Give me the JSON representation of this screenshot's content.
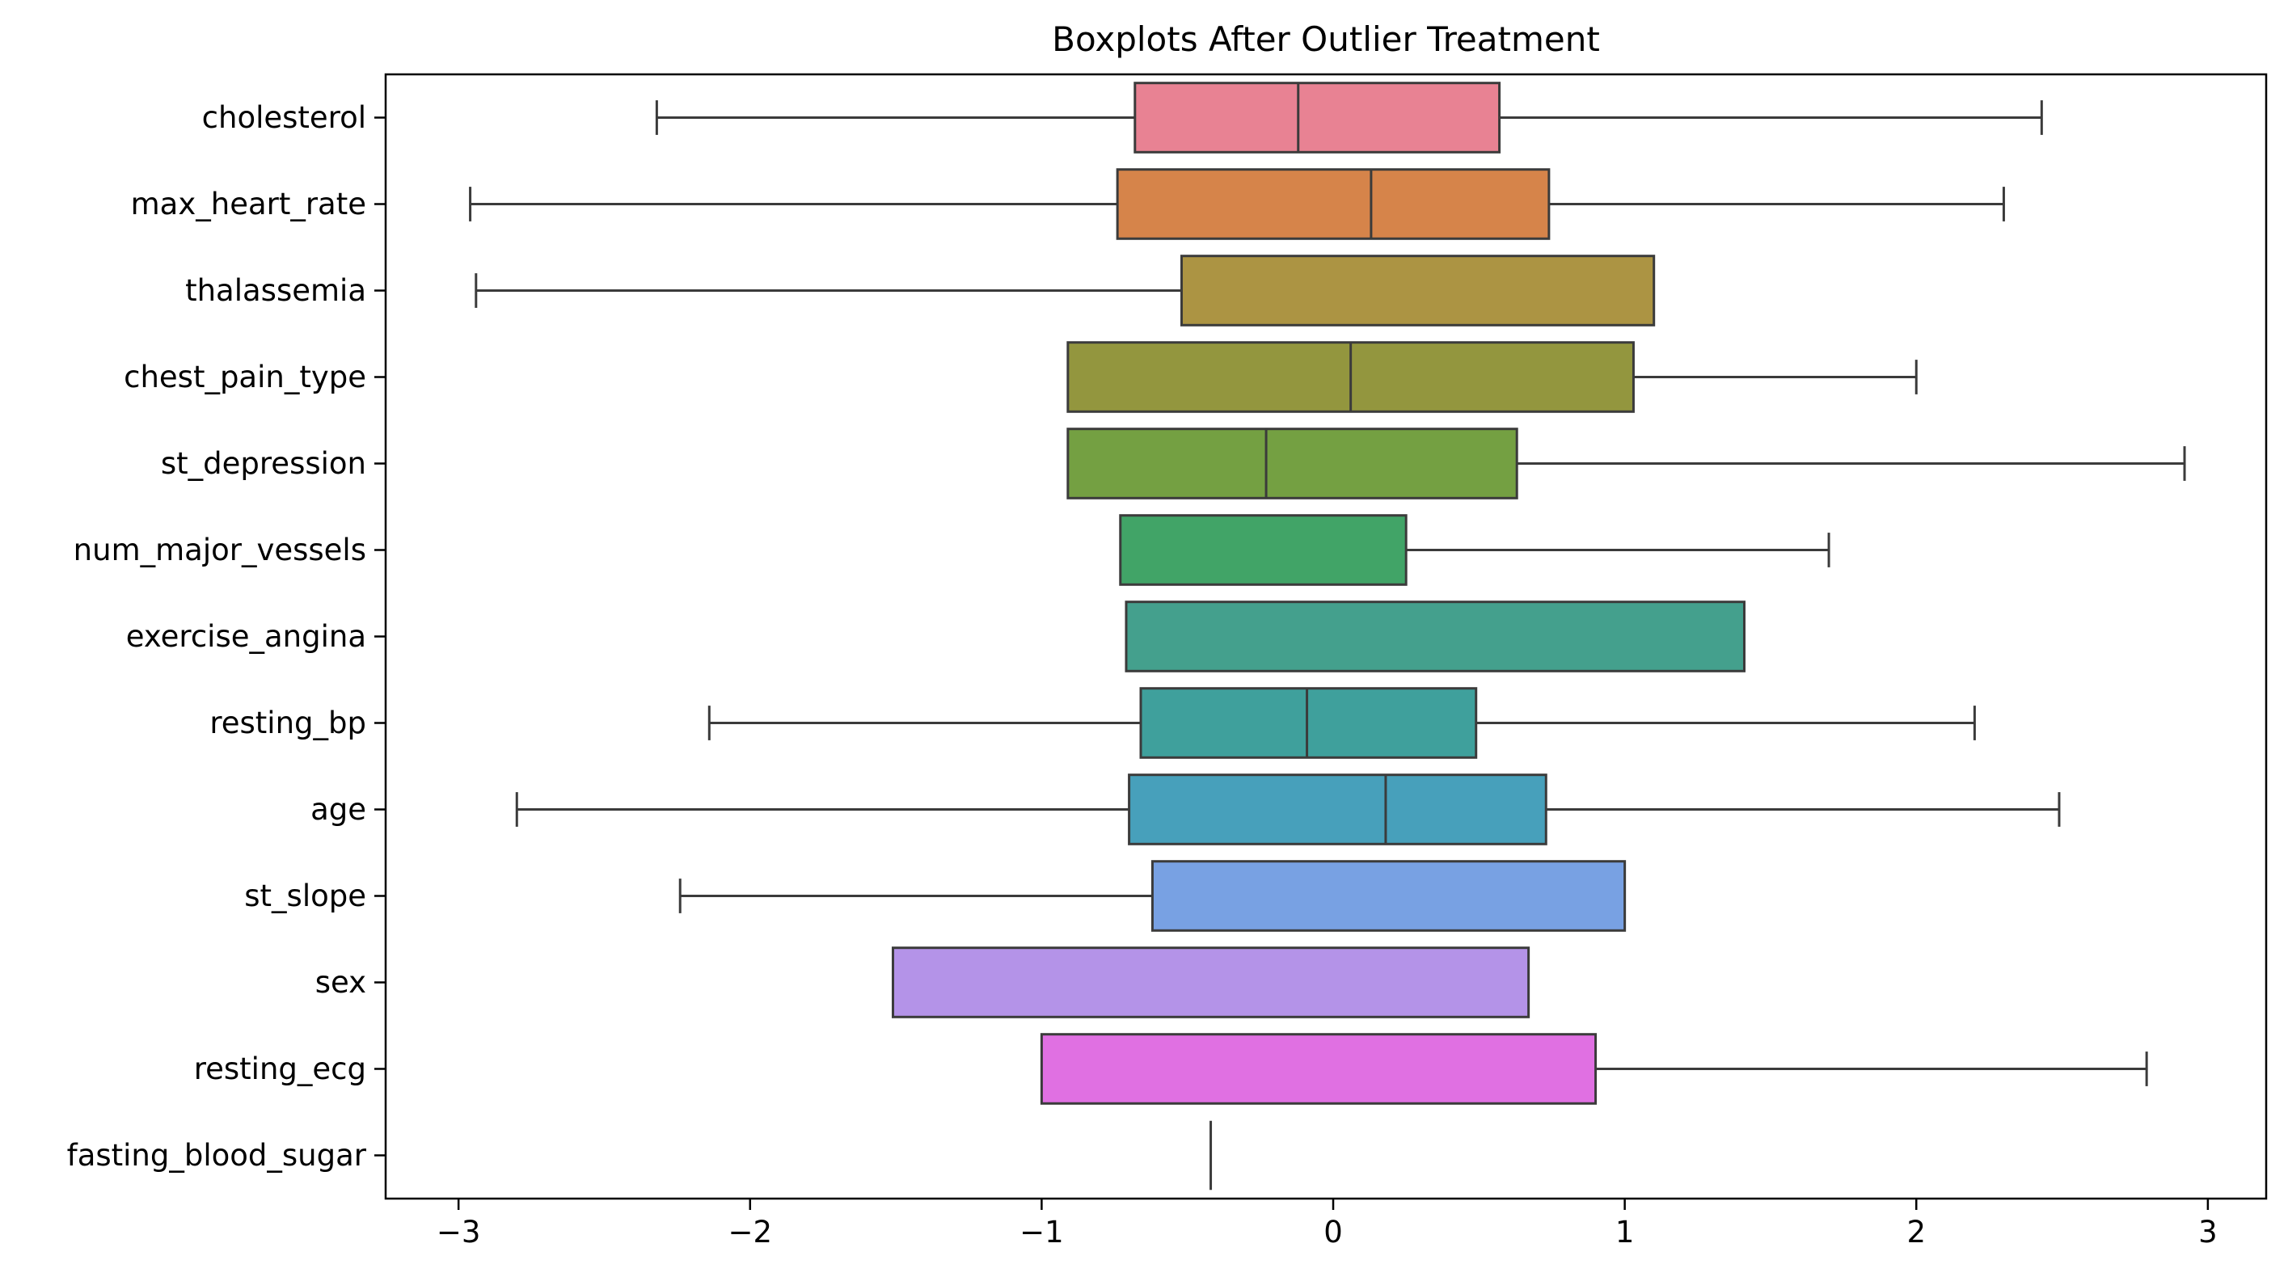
{
  "chart_data": {
    "type": "boxplot",
    "orientation": "horizontal",
    "title": "Boxplots After Outlier Treatment",
    "xlabel": "",
    "ylabel": "",
    "xlim": [
      -3.25,
      3.2
    ],
    "xticks": [
      -3,
      -2,
      -1,
      0,
      1,
      2,
      3
    ],
    "xtick_labels": [
      "−3",
      "−2",
      "−1",
      "0",
      "1",
      "2",
      "3"
    ],
    "grid": false,
    "legend": "none",
    "series": [
      {
        "name": "cholesterol",
        "color": "#e88293",
        "whisker_low": -2.32,
        "q1": -0.68,
        "median": -0.12,
        "q3": 0.57,
        "whisker_high": 2.43
      },
      {
        "name": "max_heart_rate",
        "color": "#d6844a",
        "whisker_low": -2.96,
        "q1": -0.74,
        "median": 0.13,
        "q3": 0.74,
        "whisker_high": 2.3
      },
      {
        "name": "thalassemia",
        "color": "#ac9443",
        "whisker_low": -2.94,
        "q1": -0.52,
        "median": null,
        "q3": 1.1,
        "whisker_high": 1.1
      },
      {
        "name": "chest_pain_type",
        "color": "#93963e",
        "whisker_low": -0.91,
        "q1": -0.91,
        "median": 0.06,
        "q3": 1.03,
        "whisker_high": 2.0
      },
      {
        "name": "st_depression",
        "color": "#74a042",
        "whisker_low": -0.91,
        "q1": -0.91,
        "median": -0.23,
        "q3": 0.63,
        "whisker_high": 2.92
      },
      {
        "name": "num_major_vessels",
        "color": "#41a467",
        "whisker_low": -0.73,
        "q1": -0.73,
        "median": null,
        "q3": 0.25,
        "whisker_high": 1.7
      },
      {
        "name": "exercise_angina",
        "color": "#44a08d",
        "whisker_low": -0.71,
        "q1": -0.71,
        "median": null,
        "q3": 1.41,
        "whisker_high": 1.41
      },
      {
        "name": "resting_bp",
        "color": "#3fa09c",
        "whisker_low": -2.14,
        "q1": -0.66,
        "median": -0.09,
        "q3": 0.49,
        "whisker_high": 2.2
      },
      {
        "name": "age",
        "color": "#47a0bb",
        "whisker_low": -2.8,
        "q1": -0.7,
        "median": 0.18,
        "q3": 0.73,
        "whisker_high": 2.49
      },
      {
        "name": "st_slope",
        "color": "#78a1e3",
        "whisker_low": -2.24,
        "q1": -0.62,
        "median": null,
        "q3": 1.0,
        "whisker_high": 1.0
      },
      {
        "name": "sex",
        "color": "#b493e8",
        "whisker_low": -1.51,
        "q1": -1.51,
        "median": null,
        "q3": 0.67,
        "whisker_high": 0.67
      },
      {
        "name": "resting_ecg",
        "color": "#e070e2",
        "whisker_low": -1.0,
        "q1": -1.0,
        "median": null,
        "q3": 0.9,
        "whisker_high": 2.79
      },
      {
        "name": "fasting_blood_sugar",
        "color": "#e86ec5",
        "whisker_low": -0.42,
        "q1": -0.42,
        "median": -0.42,
        "q3": -0.42,
        "whisker_high": -0.42
      }
    ]
  }
}
